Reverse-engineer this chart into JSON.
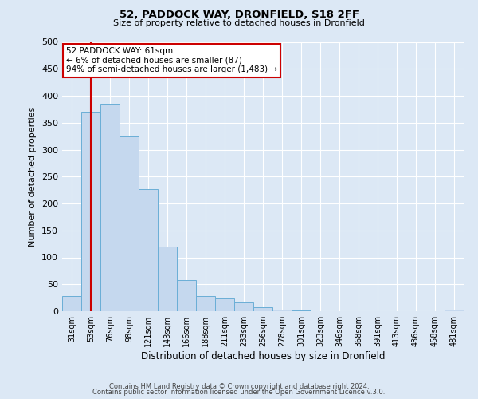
{
  "title": "52, PADDOCK WAY, DRONFIELD, S18 2FF",
  "subtitle": "Size of property relative to detached houses in Dronfield",
  "xlabel": "Distribution of detached houses by size in Dronfield",
  "ylabel": "Number of detached properties",
  "bin_labels": [
    "31sqm",
    "53sqm",
    "76sqm",
    "98sqm",
    "121sqm",
    "143sqm",
    "166sqm",
    "188sqm",
    "211sqm",
    "233sqm",
    "256sqm",
    "278sqm",
    "301sqm",
    "323sqm",
    "346sqm",
    "368sqm",
    "391sqm",
    "413sqm",
    "436sqm",
    "458sqm",
    "481sqm"
  ],
  "bar_heights": [
    28,
    370,
    385,
    325,
    226,
    120,
    58,
    28,
    23,
    17,
    8,
    3,
    1,
    0,
    0,
    0,
    0,
    0,
    0,
    0,
    3
  ],
  "bar_color": "#c5d8ee",
  "bar_edge_color": "#6aaed6",
  "vline_x": 1,
  "vline_color": "#cc0000",
  "ylim": [
    0,
    500
  ],
  "yticks": [
    0,
    50,
    100,
    150,
    200,
    250,
    300,
    350,
    400,
    450,
    500
  ],
  "annotation_title": "52 PADDOCK WAY: 61sqm",
  "annotation_line1": "← 6% of detached houses are smaller (87)",
  "annotation_line2": "94% of semi-detached houses are larger (1,483) →",
  "annotation_box_color": "#ffffff",
  "annotation_box_edge": "#cc0000",
  "footer1": "Contains HM Land Registry data © Crown copyright and database right 2024.",
  "footer2": "Contains public sector information licensed under the Open Government Licence v.3.0.",
  "background_color": "#dce8f5",
  "plot_background_color": "#dce8f5"
}
